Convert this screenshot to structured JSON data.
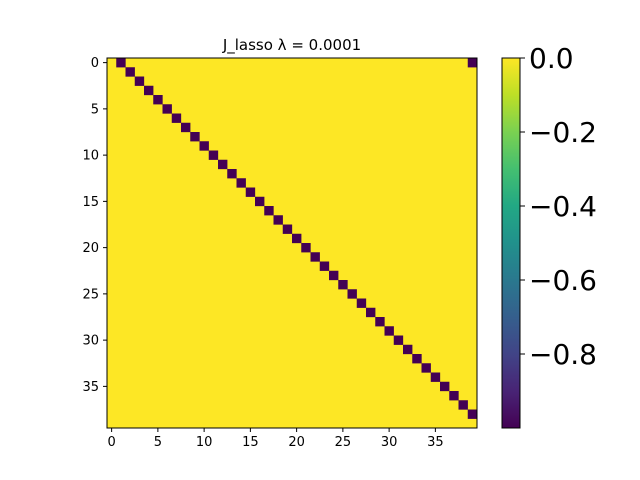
{
  "chart_data": {
    "type": "heatmap",
    "title": "J_lasso λ = 0.0001",
    "xlabel": "",
    "ylabel": "",
    "size": 40,
    "background_value": 0.0,
    "cells": [
      {
        "row": 0,
        "col": 1,
        "value": -1.0
      },
      {
        "row": 0,
        "col": 39,
        "value": -1.0
      },
      {
        "row": 1,
        "col": 2,
        "value": -1.0
      },
      {
        "row": 2,
        "col": 3,
        "value": -1.0
      },
      {
        "row": 3,
        "col": 4,
        "value": -1.0
      },
      {
        "row": 4,
        "col": 5,
        "value": -1.0
      },
      {
        "row": 5,
        "col": 6,
        "value": -1.0
      },
      {
        "row": 6,
        "col": 7,
        "value": -1.0
      },
      {
        "row": 7,
        "col": 8,
        "value": -1.0
      },
      {
        "row": 8,
        "col": 9,
        "value": -1.0
      },
      {
        "row": 9,
        "col": 10,
        "value": -1.0
      },
      {
        "row": 10,
        "col": 11,
        "value": -1.0
      },
      {
        "row": 11,
        "col": 12,
        "value": -1.0
      },
      {
        "row": 12,
        "col": 13,
        "value": -1.0
      },
      {
        "row": 13,
        "col": 14,
        "value": -1.0
      },
      {
        "row": 14,
        "col": 15,
        "value": -1.0
      },
      {
        "row": 15,
        "col": 16,
        "value": -1.0
      },
      {
        "row": 16,
        "col": 17,
        "value": -1.0
      },
      {
        "row": 17,
        "col": 18,
        "value": -1.0
      },
      {
        "row": 18,
        "col": 19,
        "value": -1.0
      },
      {
        "row": 19,
        "col": 20,
        "value": -1.0
      },
      {
        "row": 20,
        "col": 21,
        "value": -1.0
      },
      {
        "row": 21,
        "col": 22,
        "value": -1.0
      },
      {
        "row": 22,
        "col": 23,
        "value": -1.0
      },
      {
        "row": 23,
        "col": 24,
        "value": -1.0
      },
      {
        "row": 24,
        "col": 25,
        "value": -1.0
      },
      {
        "row": 25,
        "col": 26,
        "value": -1.0
      },
      {
        "row": 26,
        "col": 27,
        "value": -1.0
      },
      {
        "row": 27,
        "col": 28,
        "value": -1.0
      },
      {
        "row": 28,
        "col": 29,
        "value": -1.0
      },
      {
        "row": 29,
        "col": 30,
        "value": -1.0
      },
      {
        "row": 30,
        "col": 31,
        "value": -1.0
      },
      {
        "row": 31,
        "col": 32,
        "value": -1.0
      },
      {
        "row": 32,
        "col": 33,
        "value": -1.0
      },
      {
        "row": 33,
        "col": 34,
        "value": -1.0
      },
      {
        "row": 34,
        "col": 35,
        "value": -1.0
      },
      {
        "row": 35,
        "col": 36,
        "value": -1.0
      },
      {
        "row": 36,
        "col": 37,
        "value": -1.0
      },
      {
        "row": 37,
        "col": 38,
        "value": -1.0
      },
      {
        "row": 38,
        "col": 39,
        "value": -1.0
      }
    ],
    "x_ticks": [
      0,
      5,
      10,
      15,
      20,
      25,
      30,
      35
    ],
    "x_tick_labels": [
      "0",
      "5",
      "10",
      "15",
      "20",
      "25",
      "30",
      "35"
    ],
    "y_ticks": [
      0,
      5,
      10,
      15,
      20,
      25,
      30,
      35
    ],
    "y_tick_labels": [
      "0",
      "5",
      "10",
      "15",
      "20",
      "25",
      "30",
      "35"
    ],
    "colorbar": {
      "vmin": -1.0,
      "vmax": 0.0,
      "colormap": "viridis",
      "ticks": [
        0.0,
        -0.2,
        -0.4,
        -0.6,
        -0.8
      ],
      "tick_labels": [
        "0.0",
        "−0.2",
        "−0.4",
        "−0.6",
        "−0.8"
      ]
    },
    "colors": {
      "high": "#fde725",
      "low": "#440154"
    },
    "grid": false
  }
}
